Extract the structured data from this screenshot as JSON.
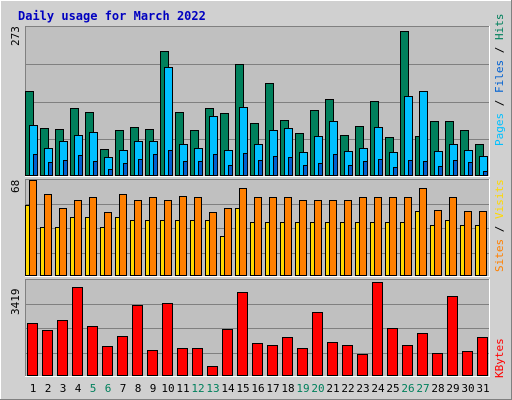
{
  "title": "Daily usage for March 2022",
  "colors": {
    "background": "#d0d0d0",
    "plot_background": "#c0c0c0",
    "title": "#0000c0",
    "hits": "#00805c",
    "files": "#00c0ff",
    "pages": "#0060d0",
    "visits": "#ffd800",
    "sites": "#ff8000",
    "kbytes": "#ff0000",
    "weekend_label": "#00805c"
  },
  "legend": {
    "pages": "Pages",
    "files": "Files",
    "hits": "Hits",
    "sites": "Sites",
    "visits": "Visits",
    "kbytes": "KBytes",
    "separator": "/"
  },
  "chart_data": [
    {
      "type": "bar",
      "panel": "hits-files-pages",
      "max_label": "273",
      "ylim": [
        0,
        273
      ],
      "grid": true,
      "categories": [
        "1",
        "2",
        "3",
        "4",
        "5",
        "6",
        "7",
        "8",
        "9",
        "10",
        "11",
        "12",
        "13",
        "14",
        "15",
        "16",
        "17",
        "18",
        "19",
        "20",
        "21",
        "22",
        "23",
        "24",
        "25",
        "26",
        "27",
        "28",
        "29",
        "30",
        "31"
      ],
      "weekend_days": [
        5,
        6,
        12,
        13,
        19,
        20,
        26,
        27
      ],
      "series": [
        {
          "name": "Hits",
          "values": [
            155,
            88,
            86,
            124,
            118,
            49,
            84,
            90,
            87,
            229,
            118,
            84,
            125,
            115,
            206,
            97,
            171,
            102,
            79,
            121,
            141,
            75,
            92,
            137,
            71,
            266,
            74,
            101,
            100,
            84,
            59
          ]
        },
        {
          "name": "Files",
          "values": [
            94,
            51,
            65,
            75,
            80,
            34,
            47,
            64,
            64,
            200,
            58,
            51,
            110,
            47,
            127,
            59,
            85,
            88,
            44,
            74,
            100,
            46,
            51,
            90,
            44,
            146,
            156,
            45,
            59,
            47,
            36
          ]
        },
        {
          "name": "Pages",
          "values": [
            40,
            25,
            30,
            38,
            28,
            12,
            24,
            32,
            40,
            48,
            28,
            28,
            40,
            20,
            42,
            30,
            36,
            35,
            20,
            24,
            40,
            20,
            28,
            32,
            16,
            30,
            28,
            18,
            30,
            25,
            10
          ]
        }
      ]
    },
    {
      "type": "bar",
      "panel": "sites-visits",
      "max_label": "68",
      "ylim": [
        0,
        68
      ],
      "grid": true,
      "categories": [
        "1",
        "2",
        "3",
        "4",
        "5",
        "6",
        "7",
        "8",
        "9",
        "10",
        "11",
        "12",
        "13",
        "14",
        "15",
        "16",
        "17",
        "18",
        "19",
        "20",
        "21",
        "22",
        "23",
        "24",
        "25",
        "26",
        "27",
        "28",
        "29",
        "30",
        "31"
      ],
      "series": [
        {
          "name": "Sites",
          "values": [
            68,
            58,
            48,
            54,
            56,
            45,
            58,
            54,
            56,
            54,
            57,
            56,
            45,
            48,
            62,
            56,
            56,
            56,
            54,
            54,
            54,
            54,
            56,
            56,
            56,
            56,
            62,
            47,
            56,
            46,
            46
          ]
        },
        {
          "name": "Visits",
          "values": [
            50,
            35,
            35,
            42,
            42,
            35,
            42,
            40,
            40,
            40,
            40,
            40,
            40,
            28,
            48,
            38,
            38,
            38,
            38,
            38,
            38,
            38,
            38,
            38,
            38,
            38,
            46,
            36,
            40,
            36,
            36
          ]
        }
      ]
    },
    {
      "type": "bar",
      "panel": "kbytes",
      "max_label": "3419",
      "ylim": [
        0,
        3419
      ],
      "grid": true,
      "categories": [
        "1",
        "2",
        "3",
        "4",
        "5",
        "6",
        "7",
        "8",
        "9",
        "10",
        "11",
        "12",
        "13",
        "14",
        "15",
        "16",
        "17",
        "18",
        "19",
        "20",
        "21",
        "22",
        "23",
        "24",
        "25",
        "26",
        "27",
        "28",
        "29",
        "30",
        "31"
      ],
      "series": [
        {
          "name": "KBytes",
          "values": [
            1880,
            1650,
            2010,
            3180,
            1780,
            1080,
            1420,
            2540,
            920,
            2590,
            1000,
            980,
            360,
            1680,
            3000,
            1180,
            1120,
            1400,
            1010,
            2280,
            1200,
            1120,
            800,
            3330,
            1720,
            1110,
            1540,
            810,
            2840,
            880,
            1390
          ]
        }
      ]
    }
  ]
}
